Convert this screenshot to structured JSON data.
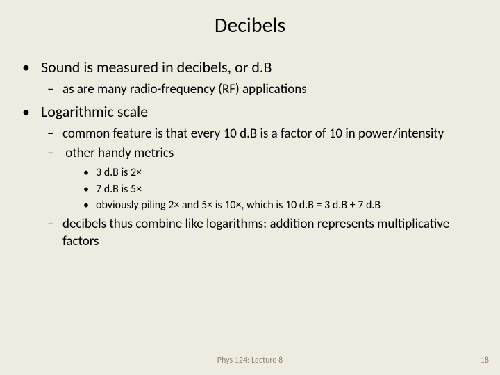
{
  "title": "Decibels",
  "bullets": {
    "b1": "Sound is measured in decibels, or d.B",
    "b1_1": "as are many radio-frequency (RF) applications",
    "b2": "Logarithmic scale",
    "b2_1": "common feature is that every 10 d.B is a factor of 10 in power/intensity",
    "b2_2": "other handy metrics",
    "b2_2_1": "3 d.B is 2×",
    "b2_2_2": "7 d.B is 5×",
    "b2_2_3": "obviously piling 2× and 5× is 10×, which is 10 d.B = 3 d.B + 7 d.B",
    "b2_3": "decibels thus combine like logarithms: addition represents multiplicative factors"
  },
  "footer": {
    "center": "Phys 124: Lecture 8",
    "page": "18"
  },
  "colors": {
    "background": "#eeece1",
    "text": "#000000",
    "footer": "#8a8674"
  }
}
